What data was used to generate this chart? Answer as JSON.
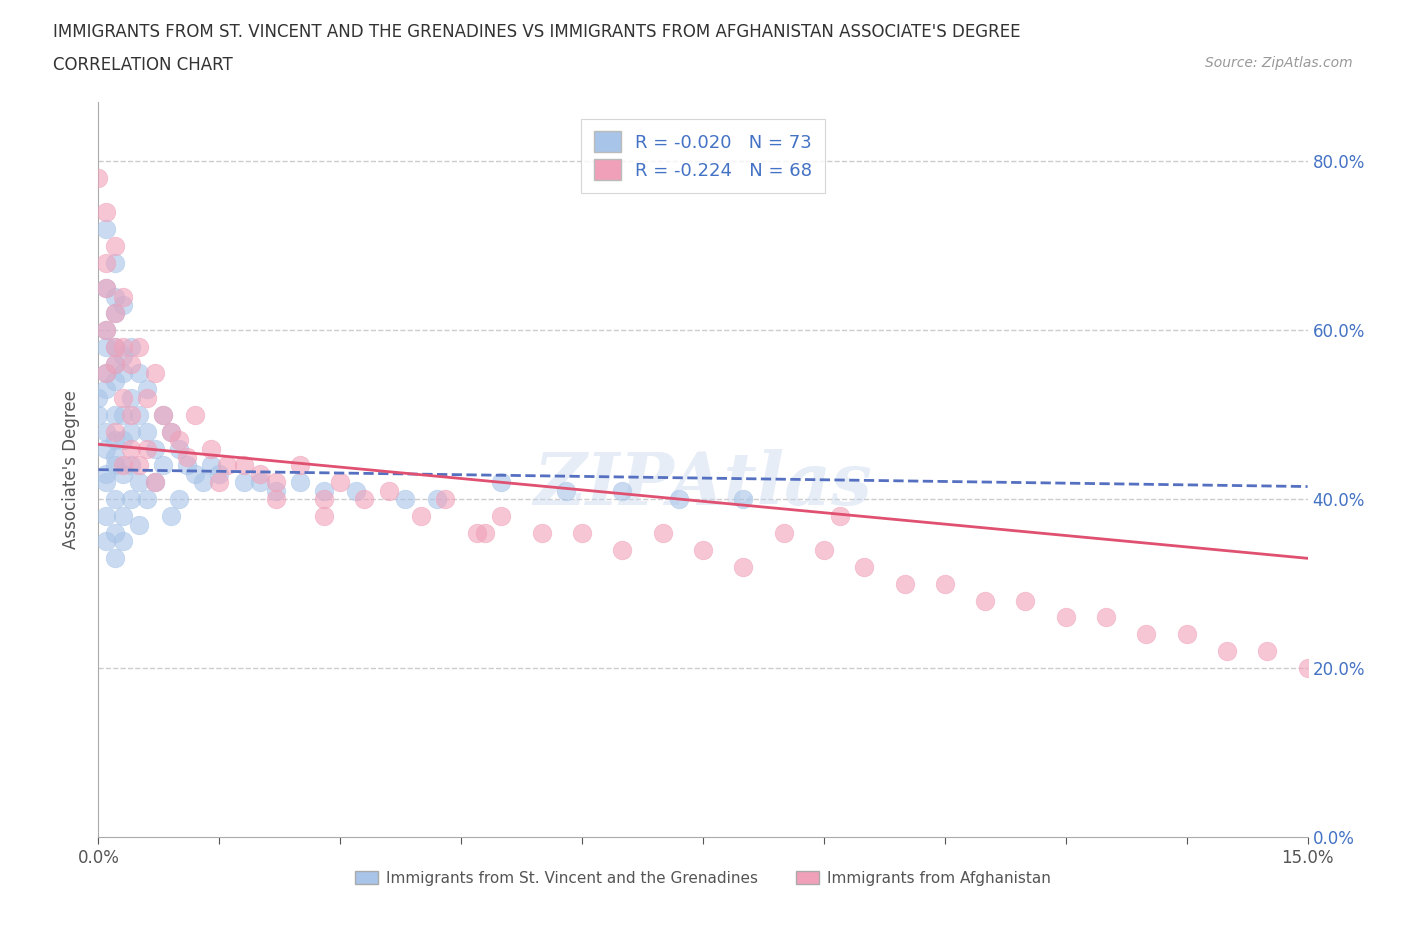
{
  "title_line1": "IMMIGRANTS FROM ST. VINCENT AND THE GRENADINES VS IMMIGRANTS FROM AFGHANISTAN ASSOCIATE'S DEGREE",
  "title_line2": "CORRELATION CHART",
  "source_text": "Source: ZipAtlas.com",
  "ylabel": "Associate's Degree",
  "xmin": 0.0,
  "xmax": 0.15,
  "ymin": 0.0,
  "ymax": 0.87,
  "color_blue": "#a8c4e8",
  "color_pink": "#f0a0b8",
  "line_blue": "#5570c0",
  "line_pink": "#e05070",
  "R_blue": -0.02,
  "N_blue": 73,
  "R_pink": -0.224,
  "N_pink": 68,
  "legend_label_blue": "Immigrants from St. Vincent and the Grenadines",
  "legend_label_pink": "Immigrants from Afghanistan",
  "background_color": "#ffffff",
  "watermark_text": "ZIPAtlas",
  "blue_trend_x0": 0.0,
  "blue_trend_y0": 0.435,
  "blue_trend_x1": 0.15,
  "blue_trend_y1": 0.415,
  "pink_trend_x0": 0.0,
  "pink_trend_y0": 0.465,
  "pink_trend_x1": 0.15,
  "pink_trend_y1": 0.33,
  "blue_scatter_x": [
    0.0,
    0.0,
    0.001,
    0.001,
    0.001,
    0.001,
    0.001,
    0.001,
    0.001,
    0.001,
    0.001,
    0.001,
    0.001,
    0.001,
    0.002,
    0.002,
    0.002,
    0.002,
    0.002,
    0.002,
    0.002,
    0.002,
    0.002,
    0.002,
    0.002,
    0.002,
    0.002,
    0.003,
    0.003,
    0.003,
    0.003,
    0.003,
    0.003,
    0.003,
    0.003,
    0.004,
    0.004,
    0.004,
    0.004,
    0.004,
    0.005,
    0.005,
    0.005,
    0.005,
    0.006,
    0.006,
    0.006,
    0.007,
    0.007,
    0.008,
    0.008,
    0.009,
    0.009,
    0.01,
    0.01,
    0.011,
    0.012,
    0.013,
    0.014,
    0.015,
    0.018,
    0.02,
    0.022,
    0.025,
    0.028,
    0.032,
    0.038,
    0.042,
    0.05,
    0.058,
    0.065,
    0.072,
    0.08
  ],
  "blue_scatter_y": [
    0.5,
    0.52,
    0.48,
    0.72,
    0.55,
    0.65,
    0.43,
    0.58,
    0.38,
    0.46,
    0.53,
    0.42,
    0.6,
    0.35,
    0.54,
    0.47,
    0.64,
    0.36,
    0.58,
    0.44,
    0.5,
    0.4,
    0.56,
    0.33,
    0.68,
    0.45,
    0.62,
    0.5,
    0.43,
    0.57,
    0.38,
    0.47,
    0.55,
    0.35,
    0.63,
    0.52,
    0.4,
    0.48,
    0.44,
    0.58,
    0.5,
    0.42,
    0.37,
    0.55,
    0.48,
    0.4,
    0.53,
    0.46,
    0.42,
    0.5,
    0.44,
    0.48,
    0.38,
    0.46,
    0.4,
    0.44,
    0.43,
    0.42,
    0.44,
    0.43,
    0.42,
    0.42,
    0.41,
    0.42,
    0.41,
    0.41,
    0.4,
    0.4,
    0.42,
    0.41,
    0.41,
    0.4,
    0.4
  ],
  "pink_scatter_x": [
    0.0,
    0.001,
    0.001,
    0.001,
    0.001,
    0.001,
    0.002,
    0.002,
    0.002,
    0.002,
    0.002,
    0.003,
    0.003,
    0.003,
    0.003,
    0.004,
    0.004,
    0.004,
    0.005,
    0.005,
    0.006,
    0.006,
    0.007,
    0.007,
    0.008,
    0.009,
    0.01,
    0.011,
    0.012,
    0.014,
    0.016,
    0.018,
    0.02,
    0.022,
    0.025,
    0.028,
    0.03,
    0.033,
    0.036,
    0.04,
    0.043,
    0.047,
    0.05,
    0.055,
    0.06,
    0.065,
    0.07,
    0.075,
    0.08,
    0.085,
    0.09,
    0.095,
    0.1,
    0.105,
    0.11,
    0.115,
    0.12,
    0.125,
    0.13,
    0.135,
    0.14,
    0.145,
    0.15,
    0.092,
    0.048,
    0.028,
    0.022,
    0.015
  ],
  "pink_scatter_y": [
    0.78,
    0.65,
    0.74,
    0.6,
    0.55,
    0.68,
    0.62,
    0.56,
    0.7,
    0.48,
    0.58,
    0.64,
    0.52,
    0.58,
    0.44,
    0.56,
    0.5,
    0.46,
    0.58,
    0.44,
    0.52,
    0.46,
    0.55,
    0.42,
    0.5,
    0.48,
    0.47,
    0.45,
    0.5,
    0.46,
    0.44,
    0.44,
    0.43,
    0.42,
    0.44,
    0.4,
    0.42,
    0.4,
    0.41,
    0.38,
    0.4,
    0.36,
    0.38,
    0.36,
    0.36,
    0.34,
    0.36,
    0.34,
    0.32,
    0.36,
    0.34,
    0.32,
    0.3,
    0.3,
    0.28,
    0.28,
    0.26,
    0.26,
    0.24,
    0.24,
    0.22,
    0.22,
    0.2,
    0.38,
    0.36,
    0.38,
    0.4,
    0.42
  ]
}
